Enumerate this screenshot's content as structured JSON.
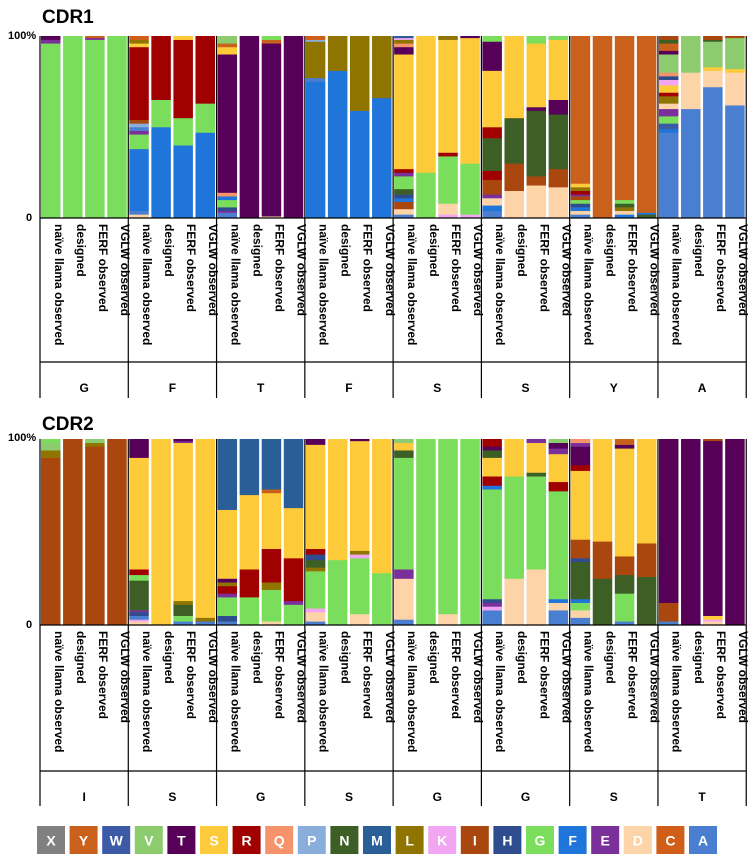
{
  "legend": {
    "letters": [
      "X",
      "Y",
      "W",
      "V",
      "T",
      "S",
      "R",
      "Q",
      "P",
      "N",
      "M",
      "L",
      "K",
      "I",
      "H",
      "G",
      "F",
      "E",
      "D",
      "C",
      "A"
    ]
  },
  "colors": {
    "X": "#808080",
    "Y": "#c9601c",
    "W": "#3c5aa6",
    "V": "#8ccc6e",
    "T": "#570057",
    "S": "#fdca3a",
    "R": "#a00000",
    "Q": "#f7936b",
    "P": "#8aaedc",
    "N": "#3d5f26",
    "M": "#2a5e96",
    "L": "#8f7400",
    "K": "#f2a6f2",
    "I": "#a9470e",
    "H": "#2f4d8e",
    "G": "#7ade5c",
    "F": "#1f75da",
    "E": "#7b2f9b",
    "D": "#fdd3a8",
    "C": "#d05e18",
    "A": "#4a7ed0"
  },
  "chart_data": [
    {
      "type": "bar",
      "stacked": true,
      "title": "CDR1",
      "yticks": [
        "100%",
        "0"
      ],
      "ylim": [
        0,
        100
      ],
      "categories": [
        "naïve llama observed",
        "designed",
        "FERF observed",
        "VGLW observed"
      ],
      "groups": [
        {
          "label": "G",
          "bars": [
            {
              "G": 96,
              "E": 2,
              "T": 2
            },
            {
              "G": 100
            },
            {
              "G": 98,
              "E": 1,
              "Y": 1
            },
            {
              "G": 100
            }
          ]
        },
        {
          "label": "F",
          "bars": [
            {
              "D": 2,
              "A": 2,
              "F": 34,
              "G": 8,
              "E": 2,
              "A2": 2,
              "P": 2,
              "I": 2,
              "R": 40,
              "S": 2,
              "L": 2,
              "C": 2
            },
            {
              "F": 50,
              "G": 15,
              "R": 35
            },
            {
              "F": 40,
              "G": 15,
              "R": 43,
              "S": 2
            },
            {
              "F": 47,
              "G": 16,
              "R": 37
            }
          ]
        },
        {
          "label": "T",
          "bars": [
            {
              "A": 3,
              "E": 1,
              "H": 2,
              "G": 4,
              "F": 2,
              "Q": 2,
              "T": 76,
              "S": 4,
              "Y": 2,
              "V": 4
            },
            {
              "T": 100
            },
            {
              "D": 1,
              "T": 95,
              "Y": 2,
              "G": 2
            },
            {
              "T": 100
            }
          ]
        },
        {
          "label": "F",
          "bars": [
            {
              "F": 75,
              "A": 2,
              "L": 20,
              "P": 1,
              "C": 2
            },
            {
              "F": 81,
              "L": 19
            },
            {
              "F": 59,
              "L": 41
            },
            {
              "F": 66,
              "L": 34
            }
          ]
        },
        {
          "label": "S",
          "bars": [
            {
              "A": 2,
              "D": 3,
              "I": 4,
              "F": 2,
              "H": 2,
              "N": 3,
              "G": 7,
              "E": 2,
              "R": 2,
              "S": 63,
              "T": 4,
              "Q": 2,
              "L": 2,
              "K": 1,
              "M": 1
            },
            {
              "G": 25,
              "S": 75
            },
            {
              "K": 2,
              "D": 6,
              "G": 26,
              "R": 2,
              "S": 62,
              "L": 2
            },
            {
              "K": 2,
              "G": 28,
              "S": 69,
              "T": 1
            }
          ]
        },
        {
          "label": "S",
          "bars": [
            {
              "A": 4,
              "F": 3,
              "D": 4,
              "E": 2,
              "I": 8,
              "R": 5,
              "N": 18,
              "R2": 6,
              "S": 31,
              "T": 16,
              "G": 3
            },
            {
              "D": 15,
              "I": 15,
              "N": 25,
              "S": 45
            },
            {
              "D": 18,
              "I": 5,
              "N": 36,
              "T": 2,
              "S": 35,
              "G": 4
            },
            {
              "D": 17,
              "I": 10,
              "N": 30,
              "T": 8,
              "S": 33,
              "G": 2
            }
          ]
        },
        {
          "label": "Y",
          "bars": [
            {
              "A": 2,
              "D": 2,
              "F": 2,
              "H": 2,
              "G": 2,
              "I": 2,
              "E": 1,
              "R": 2,
              "L": 2,
              "S": 2,
              "Y": 81
            },
            {
              "Y": 100
            },
            {
              "F": 2,
              "D": 2,
              "L": 2,
              "N": 2,
              "G": 2,
              "Y": 90
            },
            {
              "N": 2,
              "F": 1,
              "Y": 97
            }
          ]
        },
        {
          "label": "A",
          "bars": [
            {
              "A": 47,
              "F": 2,
              "W": 3,
              "G": 4,
              "E": 4,
              "D": 3,
              "L": 4,
              "R": 2,
              "S": 4,
              "K": 3,
              "H": 2,
              "Q": 2,
              "V": 10,
              "T": 2,
              "Y": 4,
              "N": 2,
              "I": 2
            },
            {
              "A": 60,
              "D": 20,
              "V": 20
            },
            {
              "A": 72,
              "D": 9,
              "S": 2,
              "V": 14,
              "N": 1,
              "I": 2
            },
            {
              "A": 62,
              "D": 18,
              "S": 2,
              "V": 17,
              "I": 1
            }
          ]
        }
      ]
    },
    {
      "type": "bar",
      "stacked": true,
      "title": "CDR2",
      "yticks": [
        "100%",
        "0"
      ],
      "ylim": [
        0,
        100
      ],
      "categories": [
        "naïve llama observed",
        "designed",
        "FERF observed",
        "VGLW observed"
      ],
      "groups": [
        {
          "label": "I",
          "bars": [
            {
              "I": 90,
              "L": 4,
              "V": 4,
              "G": 2
            },
            {
              "I": 100
            },
            {
              "I": 96,
              "L": 2,
              "V": 2
            },
            {
              "I": 100
            }
          ]
        },
        {
          "label": "S",
          "bars": [
            {
              "D": 2,
              "K": 1,
              "A": 2,
              "H": 2,
              "E": 1,
              "N": 16,
              "G": 3,
              "R": 3,
              "S": 60,
              "T": 10
            },
            {
              "S": 100
            },
            {
              "A": 2,
              "G": 3,
              "N": 6,
              "L": 2,
              "S": 85,
              "E": 1,
              "T": 1
            },
            {
              "A": 2,
              "L": 2,
              "S": 96
            }
          ]
        },
        {
          "label": "G",
          "bars": [
            {
              "A": 2,
              "H": 3,
              "G": 10,
              "E": 2,
              "R": 4,
              "L": 2,
              "T": 2,
              "S": 37,
              "M": 38
            },
            {
              "G": 15,
              "R": 15,
              "S": 40,
              "M": 30
            },
            {
              "D": 2,
              "G": 17,
              "L": 4,
              "R": 18,
              "S": 30,
              "Y": 2,
              "M": 27
            },
            {
              "G": 11,
              "E": 2,
              "R": 23,
              "S": 27,
              "M": 37
            }
          ]
        },
        {
          "label": "S",
          "bars": [
            {
              "A": 2,
              "D": 5,
              "K": 2,
              "G": 20,
              "L": 2,
              "N": 4,
              "H": 3,
              "R": 3,
              "S": 56,
              "T": 3
            },
            {
              "G": 35,
              "S": 65
            },
            {
              "D": 6,
              "G": 30,
              "K": 2,
              "L": 2,
              "S": 59,
              "T": 1
            },
            {
              "G": 28,
              "S": 72
            }
          ]
        },
        {
          "label": "G",
          "bars": [
            {
              "A": 3,
              "D": 22,
              "E": 5,
              "G": 60,
              "N": 4,
              "S": 4,
              "V": 2
            },
            {
              "G": 100
            },
            {
              "D": 6,
              "G": 94
            },
            {
              "G": 100
            }
          ]
        },
        {
          "label": "G",
          "bars": [
            {
              "A": 8,
              "K": 2,
              "E": 2,
              "H": 2,
              "G": 59,
              "F": 2,
              "R": 5,
              "S": 10,
              "N": 4,
              "T": 2,
              "R2": 4
            },
            {
              "D": 25,
              "G": 55,
              "S": 20
            },
            {
              "D": 30,
              "G": 50,
              "N": 2,
              "S": 16,
              "E": 2
            },
            {
              "A": 8,
              "D": 4,
              "F": 2,
              "G": 58,
              "R": 5,
              "S": 15,
              "E": 3,
              "T": 3,
              "V": 2
            }
          ]
        },
        {
          "label": "S",
          "bars": [
            {
              "A": 4,
              "D": 4,
              "G": 4,
              "F": 2,
              "N": 20,
              "H": 2,
              "I": 10,
              "S": 37,
              "R": 3,
              "T": 10,
              "E": 2,
              "Q": 2
            },
            {
              "N": 25,
              "I": 20,
              "S": 55
            },
            {
              "A": 2,
              "G": 15,
              "N": 10,
              "I": 10,
              "S": 58,
              "T": 2,
              "Y": 3
            },
            {
              "N": 26,
              "I": 18,
              "S": 56
            }
          ]
        },
        {
          "label": "T",
          "bars": [
            {
              "A": 2,
              "I": 10,
              "T": 88
            },
            {
              "T": 100
            },
            {
              "D": 2,
              "K": 1,
              "S": 2,
              "T": 94,
              "I": 1
            },
            {
              "T": 100
            }
          ]
        }
      ]
    }
  ]
}
